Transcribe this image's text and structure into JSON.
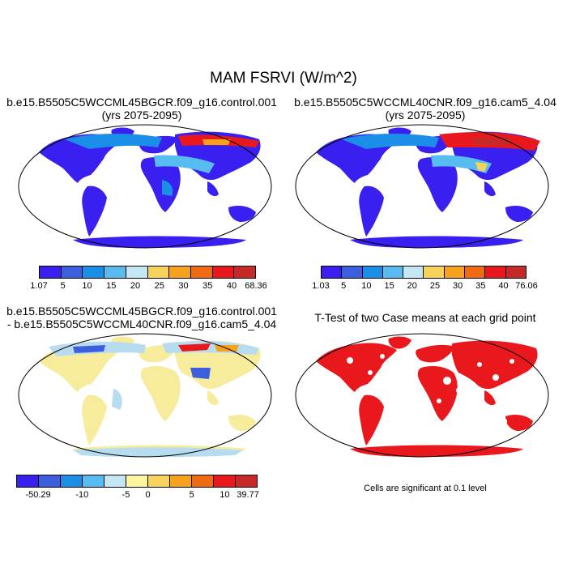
{
  "main_title": "MAM FSRVI (W/m^2)",
  "panels": [
    {
      "title_line1": "b.e15.B5505C5WCCML45BGCR.f09_g16.control.001",
      "title_line2": "(yrs 2075-2095)",
      "colorbar": {
        "labels": [
          "1.07",
          "5",
          "10",
          "15",
          "20",
          "25",
          "30",
          "35",
          "40",
          "68.36"
        ],
        "colors": [
          "#3a20f0",
          "#3d5fde",
          "#1b8ee8",
          "#57bdf0",
          "#c5e6f5",
          "#f7d35c",
          "#f7a21c",
          "#f06a14",
          "#e8181c",
          "#c82828"
        ]
      }
    },
    {
      "title_line1": "b.e15.B5505C5WCCML40CNR.f09_g16.cam5_4.04",
      "title_line2": "(yrs 2075-2095)",
      "colorbar": {
        "labels": [
          "1.03",
          "5",
          "10",
          "15",
          "20",
          "25",
          "30",
          "35",
          "40",
          "76.06"
        ],
        "colors": [
          "#3a20f0",
          "#3d5fde",
          "#1b8ee8",
          "#57bdf0",
          "#c5e6f5",
          "#f7d35c",
          "#f7a21c",
          "#f06a14",
          "#e8181c",
          "#c82828"
        ]
      }
    },
    {
      "title_line1": "b.e15.B5505C5WCCML45BGCR.f09_g16.control.001",
      "title_line2": "- b.e15.B5505C5WCCML40CNR.f09_g16.cam5_4.04",
      "colorbar": {
        "labels": [
          "-50.29",
          "-10",
          "-5",
          "0",
          "5",
          "10",
          "39.77"
        ],
        "colors": [
          "#3a20f0",
          "#3d5fde",
          "#1b8ee8",
          "#57bdf0",
          "#c5e6f5",
          "#fdf5a0",
          "#f7d35c",
          "#f7a21c",
          "#f06a14",
          "#e8181c",
          "#c82828"
        ]
      }
    },
    {
      "title_line1": "T-Test of two Case means at each grid point",
      "footnote": "Cells are significant at 0.1 level"
    }
  ],
  "colors": {
    "land_low": "#3a20f0",
    "land_mid": "#2a6be0",
    "high_lat": "#e8181c",
    "diff_base": "#f6ec9c",
    "diff_light_blue": "#b8dcef",
    "ttest": "#e8181c"
  }
}
